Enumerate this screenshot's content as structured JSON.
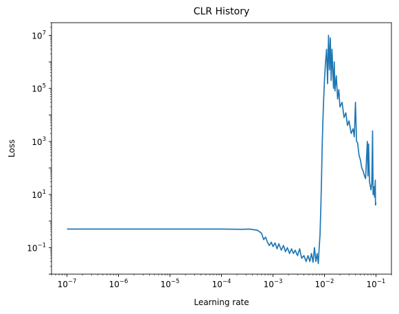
{
  "chart_data": {
    "type": "line",
    "title": "CLR History",
    "xlabel": "Learning rate",
    "ylabel": "Loss",
    "xscale": "log",
    "yscale": "log",
    "xlim": [
      5e-08,
      0.2
    ],
    "ylim": [
      0.01,
      30000000.0
    ],
    "grid": false,
    "x_tick_labels": [
      {
        "base": "10",
        "exp": "−7",
        "value": 1e-07
      },
      {
        "base": "10",
        "exp": "−6",
        "value": 1e-06
      },
      {
        "base": "10",
        "exp": "−5",
        "value": 1e-05
      },
      {
        "base": "10",
        "exp": "−4",
        "value": 0.0001
      },
      {
        "base": "10",
        "exp": "−3",
        "value": 0.001
      },
      {
        "base": "10",
        "exp": "−2",
        "value": 0.01
      },
      {
        "base": "10",
        "exp": "−1",
        "value": 0.1
      }
    ],
    "y_tick_labels": [
      {
        "base": "10",
        "exp": "−1",
        "value": 0.1
      },
      {
        "base": "10",
        "exp": "1",
        "value": 10
      },
      {
        "base": "10",
        "exp": "3",
        "value": 1000
      },
      {
        "base": "10",
        "exp": "5",
        "value": 100000
      },
      {
        "base": "10",
        "exp": "7",
        "value": 10000000
      }
    ],
    "series": [
      {
        "color": "#1f77b4",
        "points": [
          [
            1e-07,
            0.5
          ],
          [
            1e-06,
            0.5
          ],
          [
            1e-05,
            0.5
          ],
          [
            0.0001,
            0.5
          ],
          [
            0.00025,
            0.49
          ],
          [
            0.00035,
            0.5
          ],
          [
            0.0005,
            0.45
          ],
          [
            0.0006,
            0.35
          ],
          [
            0.00066,
            0.2
          ],
          [
            0.00072,
            0.25
          ],
          [
            0.00078,
            0.16
          ],
          [
            0.00085,
            0.12
          ],
          [
            0.00093,
            0.16
          ],
          [
            0.001,
            0.11
          ],
          [
            0.0011,
            0.15
          ],
          [
            0.0012,
            0.09
          ],
          [
            0.0013,
            0.14
          ],
          [
            0.00145,
            0.08
          ],
          [
            0.0016,
            0.12
          ],
          [
            0.00175,
            0.07
          ],
          [
            0.0019,
            0.1
          ],
          [
            0.0021,
            0.06
          ],
          [
            0.0023,
            0.09
          ],
          [
            0.0025,
            0.06
          ],
          [
            0.0027,
            0.08
          ],
          [
            0.003,
            0.05
          ],
          [
            0.0033,
            0.09
          ],
          [
            0.0036,
            0.04
          ],
          [
            0.004,
            0.05
          ],
          [
            0.0044,
            0.03
          ],
          [
            0.0048,
            0.05
          ],
          [
            0.0052,
            0.03
          ],
          [
            0.0056,
            0.06
          ],
          [
            0.006,
            0.028
          ],
          [
            0.0064,
            0.1
          ],
          [
            0.0068,
            0.03
          ],
          [
            0.0072,
            0.06
          ],
          [
            0.0076,
            0.025
          ],
          [
            0.0079,
            0.1
          ],
          [
            0.0082,
            0.3
          ],
          [
            0.0085,
            3
          ],
          [
            0.0088,
            50
          ],
          [
            0.009,
            500
          ],
          [
            0.0093,
            5000
          ],
          [
            0.0096,
            30000
          ],
          [
            0.01,
            200000
          ],
          [
            0.0105,
            1000000
          ],
          [
            0.011,
            3000000
          ],
          [
            0.0115,
            150000
          ],
          [
            0.012,
            10000000
          ],
          [
            0.0125,
            500000
          ],
          [
            0.013,
            8000000
          ],
          [
            0.0135,
            200000
          ],
          [
            0.014,
            3000000
          ],
          [
            0.015,
            100000
          ],
          [
            0.0155,
            1000000
          ],
          [
            0.016,
            80000
          ],
          [
            0.017,
            300000
          ],
          [
            0.018,
            40000
          ],
          [
            0.019,
            90000
          ],
          [
            0.02,
            20000
          ],
          [
            0.022,
            30000
          ],
          [
            0.024,
            8000
          ],
          [
            0.026,
            12000
          ],
          [
            0.028,
            4000
          ],
          [
            0.03,
            6000
          ],
          [
            0.033,
            2000
          ],
          [
            0.036,
            3000
          ],
          [
            0.038,
            1500
          ],
          [
            0.04,
            30000
          ],
          [
            0.042,
            1000
          ],
          [
            0.044,
            900
          ],
          [
            0.047,
            300
          ],
          [
            0.05,
            200
          ],
          [
            0.053,
            100
          ],
          [
            0.056,
            80
          ],
          [
            0.06,
            50
          ],
          [
            0.063,
            40
          ],
          [
            0.066,
            300
          ],
          [
            0.068,
            1000
          ],
          [
            0.07,
            50
          ],
          [
            0.072,
            800
          ],
          [
            0.075,
            30
          ],
          [
            0.078,
            20
          ],
          [
            0.08,
            15
          ],
          [
            0.083,
            25
          ],
          [
            0.086,
            2500
          ],
          [
            0.088,
            10
          ],
          [
            0.091,
            20
          ],
          [
            0.094,
            8
          ],
          [
            0.097,
            35
          ],
          [
            0.098,
            4
          ],
          [
            0.1,
            5
          ]
        ]
      }
    ]
  }
}
